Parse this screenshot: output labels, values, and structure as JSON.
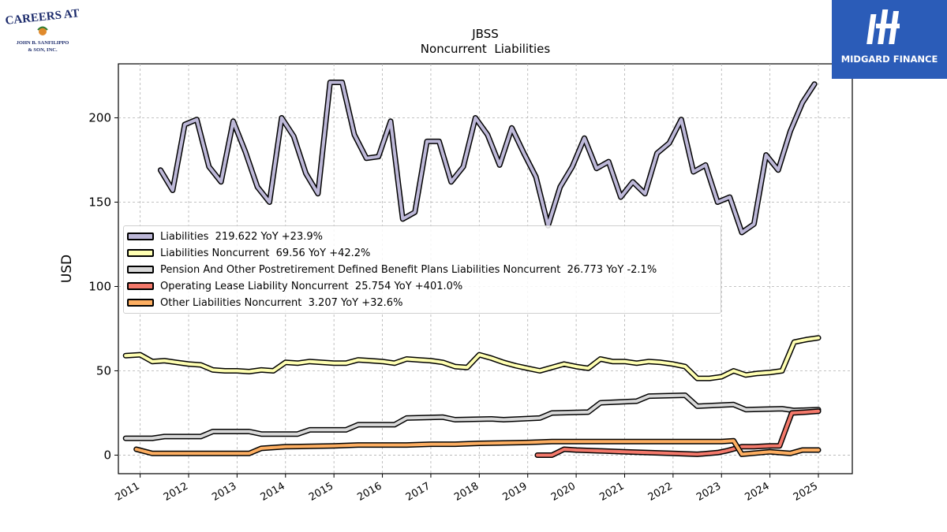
{
  "logos": {
    "left": {
      "line1": "CAREERS AT",
      "line2": "JOHN B. SANFILIPPO",
      "line3": "& SON, INC."
    },
    "right": {
      "brand": "MIDGARD FINANCE"
    }
  },
  "chart_data": {
    "type": "line",
    "title": "JBSS",
    "subtitle": "Noncurrent  Liabilities",
    "ylabel": "USD",
    "xlabel": "",
    "xlim": [
      2010.55,
      2025.7
    ],
    "ylim": [
      -11,
      232
    ],
    "yticks": [
      0,
      50,
      100,
      150,
      200
    ],
    "xticks": [
      "2011",
      "2012",
      "2013",
      "2014",
      "2015",
      "2016",
      "2017",
      "2018",
      "2019",
      "2020",
      "2021",
      "2022",
      "2023",
      "2024",
      "2025"
    ],
    "grid": true,
    "legend_position": "center-left",
    "series": [
      {
        "name": "Liabilities",
        "legend": "Liabilities  219.622 YoY +23.9%",
        "color": "#bdb8d8",
        "x": [
          2011.42,
          2011.67,
          2011.92,
          2012.17,
          2012.42,
          2012.67,
          2012.92,
          2013.17,
          2013.42,
          2013.67,
          2013.92,
          2014.17,
          2014.42,
          2014.67,
          2014.92,
          2015.17,
          2015.42,
          2015.67,
          2015.92,
          2016.17,
          2016.42,
          2016.67,
          2016.92,
          2017.17,
          2017.42,
          2017.67,
          2017.92,
          2018.17,
          2018.42,
          2018.67,
          2018.92,
          2019.17,
          2019.42,
          2019.67,
          2019.92,
          2020.17,
          2020.42,
          2020.67,
          2020.92,
          2021.17,
          2021.42,
          2021.67,
          2021.92,
          2022.17,
          2022.42,
          2022.67,
          2022.92,
          2023.17,
          2023.42,
          2023.67,
          2023.92,
          2024.17,
          2024.42,
          2024.67,
          2024.92
        ],
        "values": [
          169,
          157,
          196,
          199,
          171,
          162,
          198,
          180,
          159,
          150,
          200,
          189,
          167,
          155,
          221,
          221,
          190,
          176,
          177,
          198,
          140,
          144,
          186,
          186,
          162,
          171,
          200,
          190,
          172,
          194,
          179,
          165,
          136,
          159,
          171,
          188,
          170,
          174,
          153,
          162,
          155,
          179,
          185,
          199,
          168,
          172,
          150,
          153,
          132,
          137,
          178,
          169,
          192,
          209,
          220
        ]
      },
      {
        "name": "Liabilities Noncurrent",
        "legend": "Liabilities Noncurrent  69.56 YoY +42.2%",
        "color": "#ffffb2",
        "x": [
          2010.7,
          2011.0,
          2011.25,
          2011.5,
          2011.75,
          2012.0,
          2012.25,
          2012.5,
          2012.75,
          2013.0,
          2013.25,
          2013.5,
          2013.75,
          2014.0,
          2014.25,
          2014.5,
          2014.75,
          2015.0,
          2015.25,
          2015.5,
          2015.75,
          2016.0,
          2016.25,
          2016.5,
          2016.75,
          2017.0,
          2017.25,
          2017.5,
          2017.75,
          2018.0,
          2018.25,
          2018.5,
          2018.75,
          2019.0,
          2019.25,
          2019.5,
          2019.75,
          2020.0,
          2020.25,
          2020.5,
          2020.75,
          2021.0,
          2021.25,
          2021.5,
          2021.75,
          2022.0,
          2022.25,
          2022.5,
          2022.75,
          2023.0,
          2023.25,
          2023.5,
          2023.75,
          2024.0,
          2024.25,
          2024.5,
          2024.75,
          2025.0
        ],
        "values": [
          59,
          59.5,
          55.5,
          56,
          55,
          54,
          53.5,
          50.5,
          50,
          50,
          49.5,
          50.5,
          50,
          55,
          54.5,
          55.5,
          55,
          54.5,
          54.5,
          56.5,
          56,
          55.5,
          54.5,
          57,
          56.5,
          56,
          55,
          52.5,
          52,
          59.5,
          57.5,
          55,
          53,
          51.5,
          50,
          52,
          54,
          52.5,
          51.5,
          57,
          55.5,
          55.5,
          54.5,
          55.5,
          55,
          54,
          52.5,
          45.5,
          45.5,
          46.5,
          50,
          47.5,
          48.5,
          49,
          50,
          67,
          68.5,
          69.5
        ]
      },
      {
        "name": "Pension And Other Postretirement Defined Benefit Plans Liabilities Noncurrent",
        "legend": "Pension And Other Postretirement Defined Benefit Plans Liabilities Noncurrent  26.773 YoY -2.1%",
        "color": "#d9d9d9",
        "x": [
          2010.7,
          2011.25,
          2011.5,
          2012.25,
          2012.5,
          2013.25,
          2013.5,
          2014.25,
          2014.5,
          2015.25,
          2015.5,
          2016.25,
          2016.5,
          2017.25,
          2017.5,
          2018.25,
          2018.5,
          2019.25,
          2019.5,
          2020.25,
          2020.5,
          2021.25,
          2021.5,
          2022.25,
          2022.5,
          2023.25,
          2023.5,
          2024.25,
          2024.5,
          2025.0
        ],
        "values": [
          10,
          10,
          11,
          11,
          14,
          14,
          12.5,
          12.5,
          15,
          15,
          18,
          18,
          22,
          22.5,
          21,
          21.5,
          21,
          22,
          25,
          25.5,
          31,
          32,
          35,
          35.5,
          29,
          30,
          27,
          27.5,
          26.5,
          27
        ]
      },
      {
        "name": "Operating Lease Liability Noncurrent",
        "legend": "Operating Lease Liability Noncurrent  25.754 YoY +401.0%",
        "color": "#f4796b",
        "x": [
          2019.2,
          2019.5,
          2019.75,
          2020.0,
          2020.5,
          2021.0,
          2021.5,
          2022.0,
          2022.5,
          2022.92,
          2023.1,
          2023.42,
          2023.67,
          2024.0,
          2024.2,
          2024.45,
          2024.75,
          2025.0
        ],
        "values": [
          0,
          0,
          3.5,
          3,
          2.5,
          2,
          1.5,
          1,
          0.5,
          1.5,
          2.5,
          5,
          5,
          5.5,
          5.5,
          25,
          25.5,
          26
        ]
      },
      {
        "name": "Other Liabilities Noncurrent",
        "legend": "Other Liabilities Noncurrent  3.207 YoY +32.6%",
        "color": "#fdae61",
        "x": [
          2010.92,
          2011.25,
          2012.0,
          2013.0,
          2013.25,
          2013.5,
          2014.0,
          2015.0,
          2015.5,
          2016.0,
          2016.5,
          2017.0,
          2017.5,
          2018.0,
          2019.0,
          2019.5,
          2020.0,
          2020.5,
          2021.0,
          2021.5,
          2022.0,
          2022.5,
          2023.0,
          2023.25,
          2023.42,
          2024.0,
          2024.42,
          2024.67,
          2025.0
        ],
        "values": [
          3.5,
          1,
          1,
          1,
          1,
          4,
          5,
          5.5,
          6,
          6,
          6,
          6.5,
          6.5,
          7,
          7.5,
          8,
          8,
          8,
          8,
          8,
          8,
          8,
          8,
          8.5,
          0.5,
          2,
          1,
          3,
          3
        ]
      }
    ]
  }
}
